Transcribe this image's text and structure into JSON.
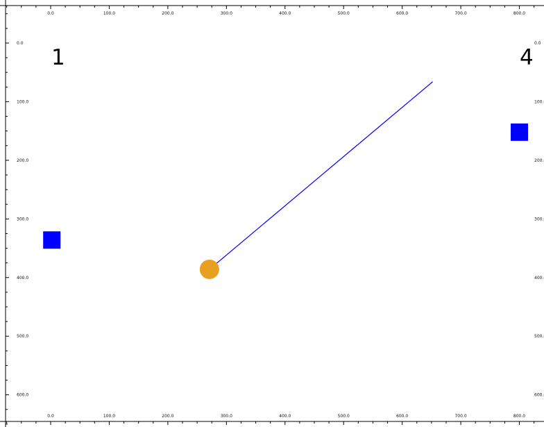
{
  "colors": {
    "background": "#ffffff",
    "ruler": "#000000",
    "paddle": "#0000ff",
    "ball": "#e8a020",
    "trajectory": "#0000ff",
    "score_text": "#000000"
  },
  "scores": {
    "left": "1",
    "right": "4"
  },
  "rulers": {
    "x_tick_labels": [
      "0.0",
      "100.0",
      "200.0",
      "300.0",
      "400.0",
      "500.0",
      "600.0",
      "700.0",
      "800.0"
    ],
    "y_tick_labels": [
      "0.0",
      "100.0",
      "200.0",
      "300.0",
      "400.0",
      "500.0",
      "600.0"
    ]
  },
  "objects": {
    "left_paddle": {
      "x": 2,
      "y": 336,
      "shape": "square"
    },
    "right_paddle": {
      "x": 800,
      "y": 152,
      "shape": "square"
    },
    "ball": {
      "x": 271,
      "y": 386,
      "shape": "circle"
    },
    "trajectory": {
      "from": [
        271,
        386
      ],
      "to": [
        652,
        66
      ]
    }
  }
}
